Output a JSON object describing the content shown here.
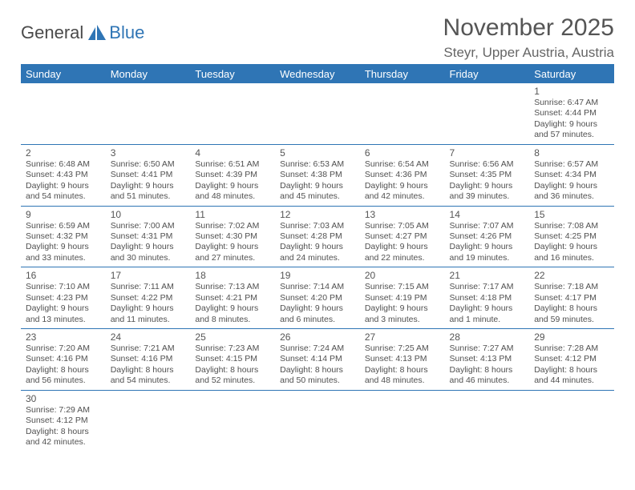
{
  "logo": {
    "textA": "General",
    "textB": "Blue"
  },
  "header": {
    "title": "November 2025",
    "subtitle": "Steyr, Upper Austria, Austria"
  },
  "colors": {
    "brand": "#2f75b5",
    "text": "#505050",
    "headerText": "#ffffff",
    "background": "#ffffff"
  },
  "calendar": {
    "columns": [
      "Sunday",
      "Monday",
      "Tuesday",
      "Wednesday",
      "Thursday",
      "Friday",
      "Saturday"
    ],
    "weeks": [
      [
        null,
        null,
        null,
        null,
        null,
        null,
        {
          "n": "1",
          "sunrise": "6:47 AM",
          "sunset": "4:44 PM",
          "dayH": 9,
          "dayM": 57
        }
      ],
      [
        {
          "n": "2",
          "sunrise": "6:48 AM",
          "sunset": "4:43 PM",
          "dayH": 9,
          "dayM": 54
        },
        {
          "n": "3",
          "sunrise": "6:50 AM",
          "sunset": "4:41 PM",
          "dayH": 9,
          "dayM": 51
        },
        {
          "n": "4",
          "sunrise": "6:51 AM",
          "sunset": "4:39 PM",
          "dayH": 9,
          "dayM": 48
        },
        {
          "n": "5",
          "sunrise": "6:53 AM",
          "sunset": "4:38 PM",
          "dayH": 9,
          "dayM": 45
        },
        {
          "n": "6",
          "sunrise": "6:54 AM",
          "sunset": "4:36 PM",
          "dayH": 9,
          "dayM": 42
        },
        {
          "n": "7",
          "sunrise": "6:56 AM",
          "sunset": "4:35 PM",
          "dayH": 9,
          "dayM": 39
        },
        {
          "n": "8",
          "sunrise": "6:57 AM",
          "sunset": "4:34 PM",
          "dayH": 9,
          "dayM": 36
        }
      ],
      [
        {
          "n": "9",
          "sunrise": "6:59 AM",
          "sunset": "4:32 PM",
          "dayH": 9,
          "dayM": 33
        },
        {
          "n": "10",
          "sunrise": "7:00 AM",
          "sunset": "4:31 PM",
          "dayH": 9,
          "dayM": 30
        },
        {
          "n": "11",
          "sunrise": "7:02 AM",
          "sunset": "4:30 PM",
          "dayH": 9,
          "dayM": 27
        },
        {
          "n": "12",
          "sunrise": "7:03 AM",
          "sunset": "4:28 PM",
          "dayH": 9,
          "dayM": 24
        },
        {
          "n": "13",
          "sunrise": "7:05 AM",
          "sunset": "4:27 PM",
          "dayH": 9,
          "dayM": 22
        },
        {
          "n": "14",
          "sunrise": "7:07 AM",
          "sunset": "4:26 PM",
          "dayH": 9,
          "dayM": 19
        },
        {
          "n": "15",
          "sunrise": "7:08 AM",
          "sunset": "4:25 PM",
          "dayH": 9,
          "dayM": 16
        }
      ],
      [
        {
          "n": "16",
          "sunrise": "7:10 AM",
          "sunset": "4:23 PM",
          "dayH": 9,
          "dayM": 13
        },
        {
          "n": "17",
          "sunrise": "7:11 AM",
          "sunset": "4:22 PM",
          "dayH": 9,
          "dayM": 11
        },
        {
          "n": "18",
          "sunrise": "7:13 AM",
          "sunset": "4:21 PM",
          "dayH": 9,
          "dayM": 8
        },
        {
          "n": "19",
          "sunrise": "7:14 AM",
          "sunset": "4:20 PM",
          "dayH": 9,
          "dayM": 6
        },
        {
          "n": "20",
          "sunrise": "7:15 AM",
          "sunset": "4:19 PM",
          "dayH": 9,
          "dayM": 3
        },
        {
          "n": "21",
          "sunrise": "7:17 AM",
          "sunset": "4:18 PM",
          "dayH": 9,
          "dayM": 1
        },
        {
          "n": "22",
          "sunrise": "7:18 AM",
          "sunset": "4:17 PM",
          "dayH": 8,
          "dayM": 59
        }
      ],
      [
        {
          "n": "23",
          "sunrise": "7:20 AM",
          "sunset": "4:16 PM",
          "dayH": 8,
          "dayM": 56
        },
        {
          "n": "24",
          "sunrise": "7:21 AM",
          "sunset": "4:16 PM",
          "dayH": 8,
          "dayM": 54
        },
        {
          "n": "25",
          "sunrise": "7:23 AM",
          "sunset": "4:15 PM",
          "dayH": 8,
          "dayM": 52
        },
        {
          "n": "26",
          "sunrise": "7:24 AM",
          "sunset": "4:14 PM",
          "dayH": 8,
          "dayM": 50
        },
        {
          "n": "27",
          "sunrise": "7:25 AM",
          "sunset": "4:13 PM",
          "dayH": 8,
          "dayM": 48
        },
        {
          "n": "28",
          "sunrise": "7:27 AM",
          "sunset": "4:13 PM",
          "dayH": 8,
          "dayM": 46
        },
        {
          "n": "29",
          "sunrise": "7:28 AM",
          "sunset": "4:12 PM",
          "dayH": 8,
          "dayM": 44
        }
      ],
      [
        {
          "n": "30",
          "sunrise": "7:29 AM",
          "sunset": "4:12 PM",
          "dayH": 8,
          "dayM": 42
        },
        null,
        null,
        null,
        null,
        null,
        null
      ]
    ],
    "labels": {
      "sunrise": "Sunrise:",
      "sunset": "Sunset:",
      "daylight": "Daylight:",
      "hours": "hours",
      "and": "and",
      "minute": "minute.",
      "minutes": "minutes."
    }
  }
}
